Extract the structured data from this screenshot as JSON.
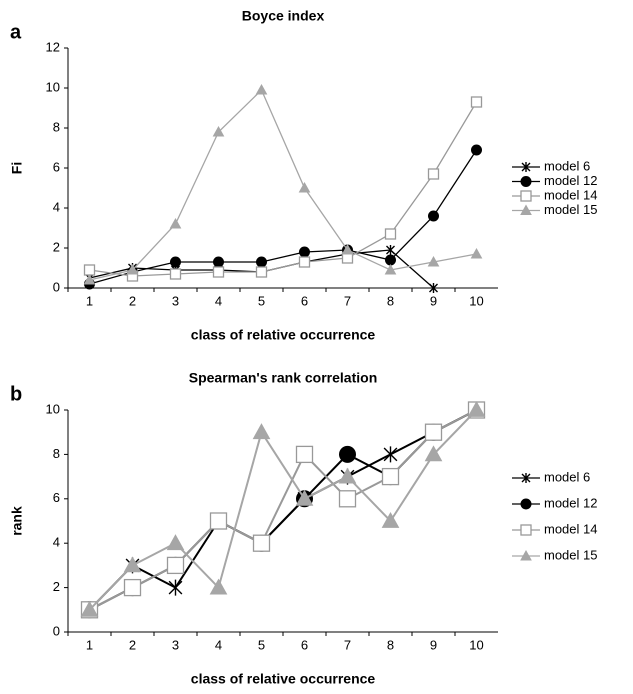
{
  "chart_data": [
    {
      "type": "line",
      "label": "a",
      "title": "Boyce index",
      "y_label": "Fi",
      "x_label": "class of relative occurrence",
      "categories": [
        "1",
        "2",
        "3",
        "4",
        "5",
        "6",
        "7",
        "8",
        "9",
        "10"
      ],
      "ylim": [
        0,
        12
      ],
      "yticks": [
        0,
        2,
        4,
        6,
        8,
        10,
        12
      ],
      "legend": "right",
      "series": [
        {
          "name": "model 6",
          "color": "#000000",
          "marker": "asterisk",
          "values": [
            0.5,
            1.0,
            0.9,
            0.9,
            0.8,
            1.3,
            1.7,
            1.9,
            0,
            null
          ]
        },
        {
          "name": "model 12",
          "color": "#000000",
          "marker": "circle",
          "values": [
            0.2,
            0.8,
            1.3,
            1.3,
            1.3,
            1.8,
            1.9,
            1.4,
            3.6,
            6.9
          ]
        },
        {
          "name": "model 14",
          "color": "#999999",
          "marker": "square",
          "values": [
            0.9,
            0.6,
            0.7,
            0.8,
            0.8,
            1.3,
            1.5,
            2.7,
            5.7,
            9.3
          ]
        },
        {
          "name": "model 15",
          "color": "#a6a6a6",
          "marker": "triangle",
          "values": [
            0.4,
            0.9,
            3.2,
            7.8,
            9.9,
            5.0,
            1.9,
            0.9,
            1.3,
            1.7
          ]
        }
      ]
    },
    {
      "type": "line",
      "label": "b",
      "title": "Spearman's rank correlation",
      "y_label": "rank",
      "x_label": "class of relative occurrence",
      "categories": [
        "1",
        "2",
        "3",
        "4",
        "5",
        "6",
        "7",
        "8",
        "9",
        "10"
      ],
      "ylim": [
        0,
        10
      ],
      "yticks": [
        0,
        2,
        4,
        6,
        8,
        10
      ],
      "legend": "right",
      "series": [
        {
          "name": "model 6",
          "color": "#000000",
          "marker": "asterisk",
          "values": [
            1,
            3,
            2,
            5,
            4,
            6,
            7,
            8,
            9,
            10
          ]
        },
        {
          "name": "model 12",
          "color": "#000000",
          "marker": "circle",
          "values": [
            1,
            2,
            3,
            5,
            4,
            6,
            8,
            7,
            9,
            10
          ]
        },
        {
          "name": "model 14",
          "color": "#999999",
          "marker": "square",
          "values": [
            1,
            2,
            3,
            5,
            4,
            8,
            6,
            7,
            9,
            10
          ]
        },
        {
          "name": "model 15",
          "color": "#a6a6a6",
          "marker": "triangle",
          "values": [
            1,
            3,
            4,
            2,
            9,
            6,
            7,
            5,
            8,
            10
          ]
        }
      ]
    }
  ]
}
